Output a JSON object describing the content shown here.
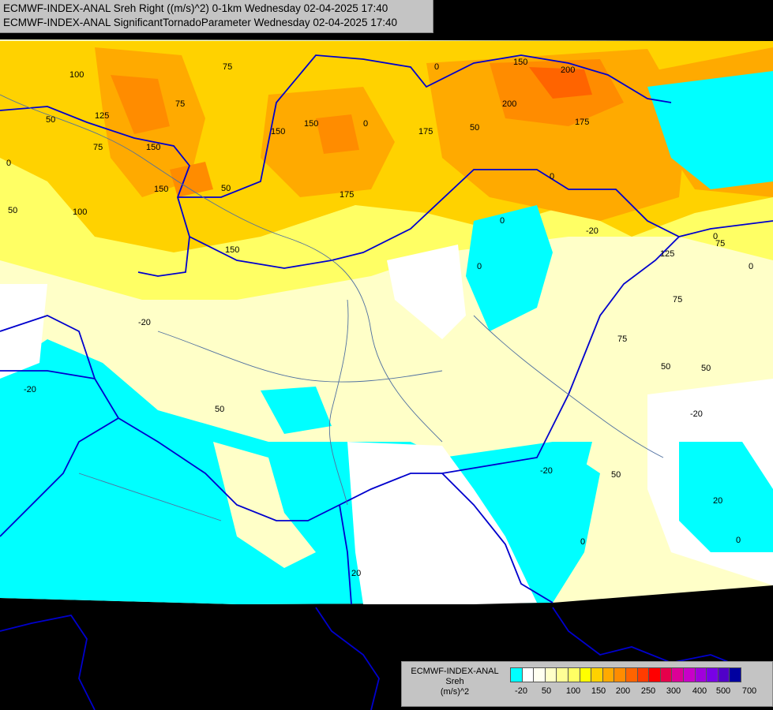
{
  "titles": {
    "line1": "ECMWF-INDEX-ANAL Sreh Right ((m/s)^2) 0-1km Wednesday 02-04-2025 17:40",
    "line2": "ECMWF-INDEX-ANAL SignificantTornadoParameter Wednesday 02-04-2025 17:40"
  },
  "legend": {
    "title_line1": "ECMWF-INDEX-ANAL",
    "title_line2": "Sreh",
    "title_line3": "(m/s)^2",
    "colors": [
      "#00ffff",
      "#ffffff",
      "#fffff0",
      "#ffffc8",
      "#ffff96",
      "#ffff64",
      "#ffff00",
      "#ffd200",
      "#ffaa00",
      "#ff8c00",
      "#ff6400",
      "#ff3c00",
      "#ff0000",
      "#e6004b",
      "#dc0096",
      "#c800c8",
      "#a000dc",
      "#7800e6",
      "#5000c8",
      "#0000a0"
    ],
    "ticks": [
      "-20",
      "50",
      "100",
      "150",
      "200",
      "250",
      "300",
      "400",
      "500",
      "700"
    ]
  },
  "contour_labels": [
    "100",
    "75",
    "50",
    "125",
    "75",
    "150",
    "150",
    "75",
    "150",
    "50",
    "100",
    "0",
    "150",
    "175",
    "200",
    "175",
    "0",
    "150",
    "50",
    "175",
    "200",
    "150",
    "125",
    "0",
    "-20",
    "0",
    "75",
    "75",
    "75",
    "50",
    "50",
    "-20",
    "-20",
    "50",
    "0",
    "0",
    "-20",
    "-20",
    "0",
    "0",
    "50",
    "20",
    "0",
    "50",
    "0",
    "20"
  ],
  "colors": {
    "ocean": "#000000",
    "low_shear": "#00ffff",
    "moderate": "#ffffc8",
    "high": "#ffd200",
    "very_high": "#ff8c00",
    "border": "#0000cd",
    "river": "#5070a0"
  }
}
